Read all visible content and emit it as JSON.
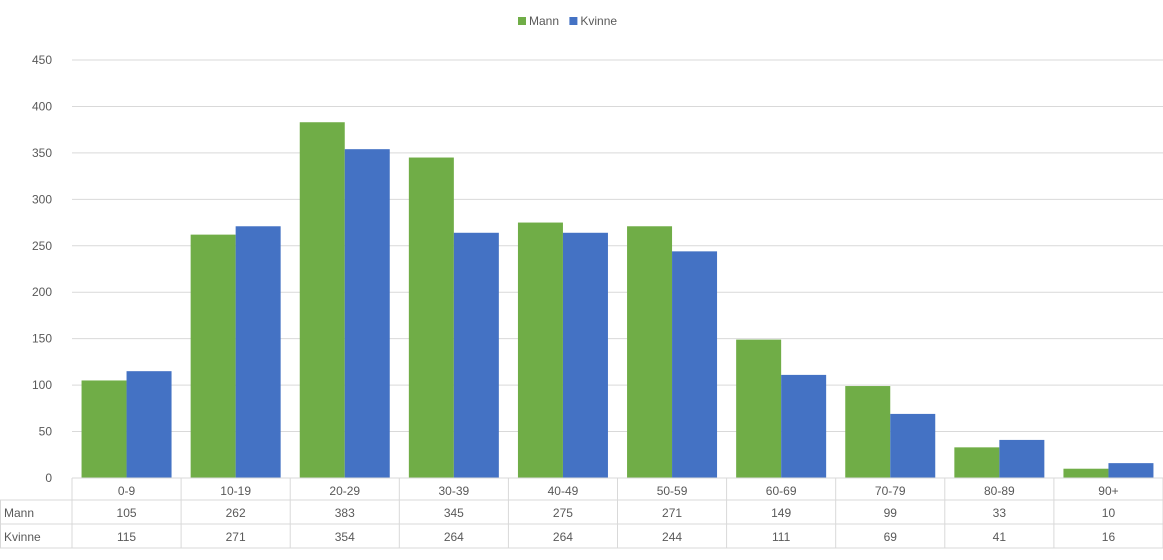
{
  "chart_data": {
    "type": "bar",
    "categories": [
      "0-9",
      "10-19",
      "20-29",
      "30-39",
      "40-49",
      "50-59",
      "60-69",
      "70-79",
      "80-89",
      "90+"
    ],
    "series": [
      {
        "name": "Mann",
        "color": "#70ad47",
        "values": [
          105,
          262,
          383,
          345,
          275,
          271,
          149,
          99,
          33,
          10
        ]
      },
      {
        "name": "Kvinne",
        "color": "#4472c4",
        "values": [
          115,
          271,
          354,
          264,
          264,
          244,
          111,
          69,
          41,
          16
        ]
      }
    ],
    "yticks": [
      "0",
      "50",
      "100",
      "150",
      "200",
      "250",
      "300",
      "350",
      "400",
      "450"
    ],
    "ylim": [
      0,
      450
    ],
    "grid": true,
    "legend": "top-center",
    "data_table": true
  }
}
